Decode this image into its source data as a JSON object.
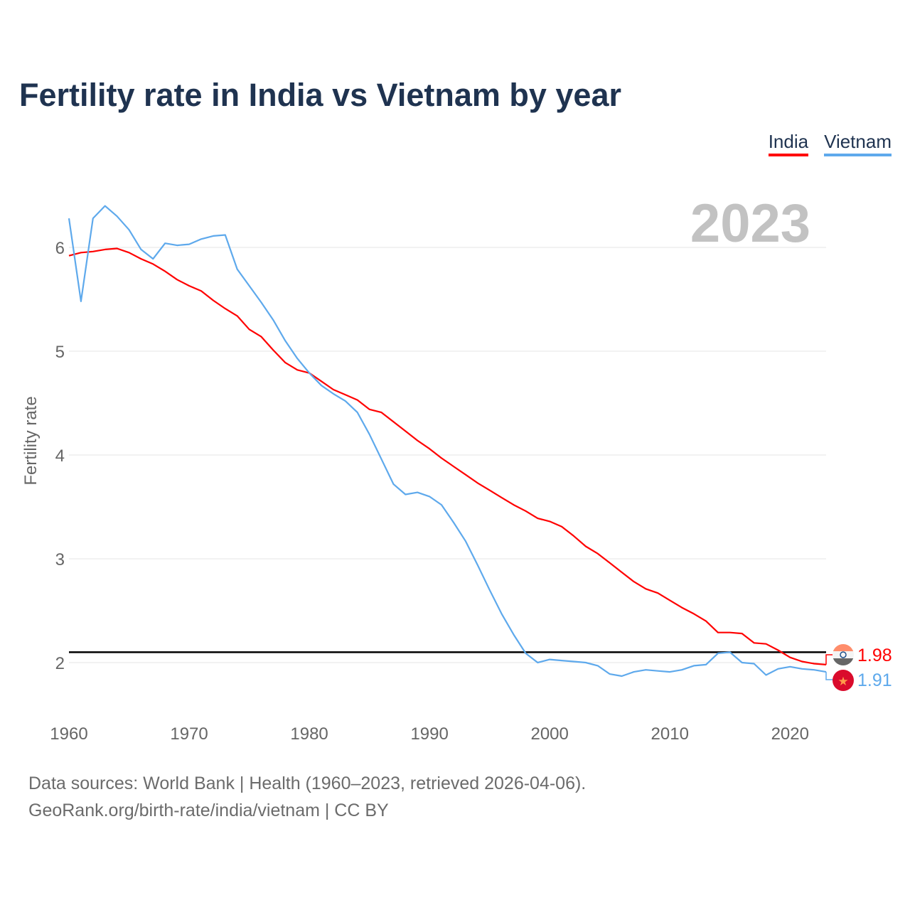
{
  "title": "Fertility rate in India vs Vietnam by year",
  "legend": [
    {
      "label": "India",
      "color": "#ff0000"
    },
    {
      "label": "Vietnam",
      "color": "#5ea9ec"
    }
  ],
  "footer": {
    "line1": "Data sources: World Bank | Health (1960–2023, retrieved 2026-04-06).",
    "line2": "GeoRank.org/birth-rate/india/vietnam | CC BY"
  },
  "chart_data": {
    "type": "line",
    "title": "Fertility rate in India vs Vietnam by year",
    "year_label": "2023",
    "xlabel": "",
    "ylabel": "Fertility rate",
    "xlim": [
      1960,
      2023
    ],
    "ylim": [
      1.6,
      6.6
    ],
    "x_ticks": [
      1960,
      1970,
      1980,
      1990,
      2000,
      2010,
      2020
    ],
    "y_ticks": [
      2,
      3,
      4,
      5,
      6
    ],
    "grid": true,
    "legend_position": "top-right",
    "reference_line": 2.1,
    "x": [
      1960,
      1961,
      1962,
      1963,
      1964,
      1965,
      1966,
      1967,
      1968,
      1969,
      1970,
      1971,
      1972,
      1973,
      1974,
      1975,
      1976,
      1977,
      1978,
      1979,
      1980,
      1981,
      1982,
      1983,
      1984,
      1985,
      1986,
      1987,
      1988,
      1989,
      1990,
      1991,
      1992,
      1993,
      1994,
      1995,
      1996,
      1997,
      1998,
      1999,
      2000,
      2001,
      2002,
      2003,
      2004,
      2005,
      2006,
      2007,
      2008,
      2009,
      2010,
      2011,
      2012,
      2013,
      2014,
      2015,
      2016,
      2017,
      2018,
      2019,
      2020,
      2021,
      2022,
      2023
    ],
    "series": [
      {
        "name": "India",
        "color": "#ff0000",
        "end_label": "1.98",
        "values": [
          5.92,
          5.95,
          5.96,
          5.98,
          5.99,
          5.95,
          5.89,
          5.84,
          5.77,
          5.69,
          5.63,
          5.58,
          5.49,
          5.41,
          5.34,
          5.21,
          5.14,
          5.01,
          4.89,
          4.82,
          4.79,
          4.71,
          4.63,
          4.58,
          4.53,
          4.44,
          4.41,
          4.32,
          4.23,
          4.14,
          4.06,
          3.97,
          3.89,
          3.81,
          3.73,
          3.66,
          3.59,
          3.52,
          3.46,
          3.39,
          3.36,
          3.31,
          3.22,
          3.12,
          3.05,
          2.96,
          2.87,
          2.78,
          2.71,
          2.67,
          2.6,
          2.53,
          2.47,
          2.4,
          2.29,
          2.29,
          2.28,
          2.19,
          2.18,
          2.12,
          2.05,
          2.01,
          1.99,
          1.98
        ]
      },
      {
        "name": "Vietnam",
        "color": "#5ea9ec",
        "end_label": "1.91",
        "values": [
          6.28,
          5.48,
          6.28,
          6.4,
          6.3,
          6.17,
          5.98,
          5.89,
          6.04,
          6.02,
          6.03,
          6.08,
          6.11,
          6.12,
          5.79,
          5.63,
          5.47,
          5.3,
          5.1,
          4.93,
          4.79,
          4.67,
          4.59,
          4.52,
          4.41,
          4.2,
          3.96,
          3.72,
          3.62,
          3.64,
          3.6,
          3.52,
          3.35,
          3.17,
          2.94,
          2.7,
          2.47,
          2.27,
          2.09,
          2.0,
          2.03,
          2.02,
          2.01,
          2.0,
          1.97,
          1.89,
          1.87,
          1.91,
          1.93,
          1.92,
          1.91,
          1.93,
          1.97,
          1.98,
          2.09,
          2.1,
          2.0,
          1.99,
          1.88,
          1.94,
          1.96,
          1.94,
          1.93,
          1.91
        ]
      }
    ]
  }
}
